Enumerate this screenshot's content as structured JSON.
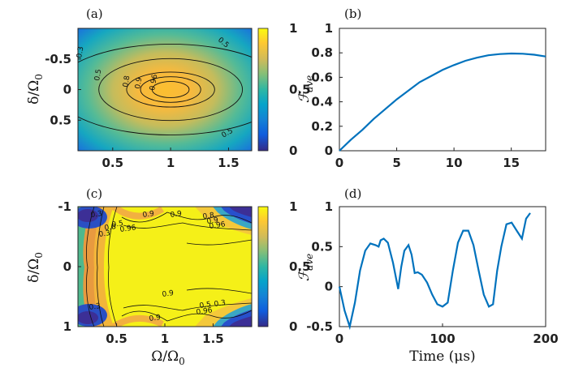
{
  "figure": {
    "panels": [
      {
        "id": "a",
        "label": "(a)"
      },
      {
        "id": "b",
        "label": "(b)"
      },
      {
        "id": "c",
        "label": "(c)"
      },
      {
        "id": "d",
        "label": "(d)"
      }
    ]
  },
  "chart_data": [
    {
      "id": "a",
      "type": "heatmap",
      "xlim": [
        0.2,
        1.7
      ],
      "ylim": [
        -1,
        1
      ],
      "y_reversed": true,
      "xticks": [
        "0.5",
        "1",
        "1.5"
      ],
      "xtick_values": [
        0.5,
        1,
        1.5
      ],
      "yticks": [
        "-0.5",
        "0",
        "0.5"
      ],
      "ytick_values": [
        -0.5,
        0,
        0.5
      ],
      "ylabel": "δ/Ω",
      "ylabel_sub": "0",
      "colorbar": {
        "ticks": [
          "0",
          "0.5",
          "1"
        ],
        "tick_values": [
          0,
          0.5,
          1
        ]
      },
      "contours": [
        {
          "level": "0.3",
          "rx": 1.0,
          "ry": 1.35
        },
        {
          "level": "0.5",
          "rx": 0.62,
          "ry": 0.92
        },
        {
          "level": "0.8",
          "rx": 0.38,
          "ry": 0.52
        },
        {
          "level": "0.9",
          "rx": 0.26,
          "ry": 0.38
        },
        {
          "level": "0.96",
          "rx": 0.16,
          "ry": 0.24
        }
      ],
      "contour_labels": [
        "0.3",
        "0.5",
        "0.5",
        "0.5",
        "0.8",
        "0.9",
        "0.96"
      ],
      "center": {
        "x": 1.0,
        "y": 0.0
      }
    },
    {
      "id": "b",
      "type": "line",
      "xlim": [
        0,
        18
      ],
      "ylim": [
        0,
        1
      ],
      "xticks": [
        "0",
        "5",
        "10",
        "15"
      ],
      "xtick_values": [
        0,
        5,
        10,
        15
      ],
      "yticks": [
        "0",
        "0.2",
        "0.4",
        "0.6",
        "0.8",
        "1"
      ],
      "ytick_values": [
        0,
        0.2,
        0.4,
        0.6,
        0.8,
        1
      ],
      "ylabel": "ℱ",
      "ylabel_sub": "ave",
      "series": [
        {
          "x": [
            0,
            1,
            2,
            3,
            4,
            5,
            6,
            7,
            8,
            9,
            10,
            11,
            12,
            13,
            14,
            15,
            16,
            17,
            18
          ],
          "y": [
            0.0,
            0.09,
            0.17,
            0.26,
            0.34,
            0.42,
            0.49,
            0.56,
            0.61,
            0.66,
            0.7,
            0.735,
            0.76,
            0.78,
            0.79,
            0.795,
            0.793,
            0.785,
            0.77
          ]
        }
      ]
    },
    {
      "id": "c",
      "type": "heatmap",
      "xlim": [
        0.1,
        1.9
      ],
      "ylim": [
        -1,
        1
      ],
      "y_reversed": true,
      "xticks": [
        "0.5",
        "1",
        "1.5"
      ],
      "xtick_values": [
        0.5,
        1,
        1.5
      ],
      "yticks": [
        "-1",
        "0",
        "1"
      ],
      "ytick_values": [
        -1,
        0,
        1
      ],
      "xlabel": "Ω/Ω",
      "xlabel_sub": "0",
      "ylabel": "δ/Ω",
      "ylabel_sub": "0",
      "colorbar": {
        "ticks": [
          "0",
          "0.5",
          "1"
        ],
        "tick_values": [
          0,
          0.5,
          1
        ]
      },
      "contour_labels": [
        "0.3",
        "0.9",
        "0.96",
        "0.8",
        "0.5",
        "0.3",
        "0.9",
        "0.8",
        "0.9",
        "0.96",
        "0.3",
        "0.9",
        "0.96",
        "0.5",
        "0.3",
        "0.9"
      ]
    },
    {
      "id": "d",
      "type": "line",
      "xlim": [
        0,
        200
      ],
      "ylim": [
        -0.5,
        1
      ],
      "xticks": [
        "0",
        "100",
        "200"
      ],
      "xtick_values": [
        0,
        100,
        200
      ],
      "yticks": [
        "-0.5",
        "0",
        "0.5",
        "1"
      ],
      "ytick_values": [
        -0.5,
        0,
        0.5,
        1
      ],
      "xlabel": "Time (μs)",
      "ylabel": "ℱ",
      "ylabel_sub": "ave",
      "series": [
        {
          "x": [
            0,
            5,
            10,
            15,
            20,
            25,
            30,
            35,
            38,
            40,
            43,
            47,
            52,
            57,
            60,
            63,
            67,
            70,
            73,
            76,
            80,
            85,
            90,
            95,
            100,
            105,
            110,
            115,
            120,
            125,
            130,
            135,
            140,
            145,
            149,
            153,
            157,
            162,
            167,
            172,
            177,
            181,
            185
          ],
          "y": [
            0.0,
            -0.3,
            -0.5,
            -0.2,
            0.2,
            0.45,
            0.54,
            0.52,
            0.5,
            0.58,
            0.6,
            0.55,
            0.3,
            -0.03,
            0.25,
            0.45,
            0.52,
            0.4,
            0.17,
            0.18,
            0.15,
            0.05,
            -0.1,
            -0.22,
            -0.25,
            -0.2,
            0.2,
            0.55,
            0.7,
            0.7,
            0.52,
            0.2,
            -0.1,
            -0.25,
            -0.22,
            0.2,
            0.5,
            0.78,
            0.8,
            0.7,
            0.6,
            0.85,
            0.92
          ]
        }
      ]
    }
  ]
}
